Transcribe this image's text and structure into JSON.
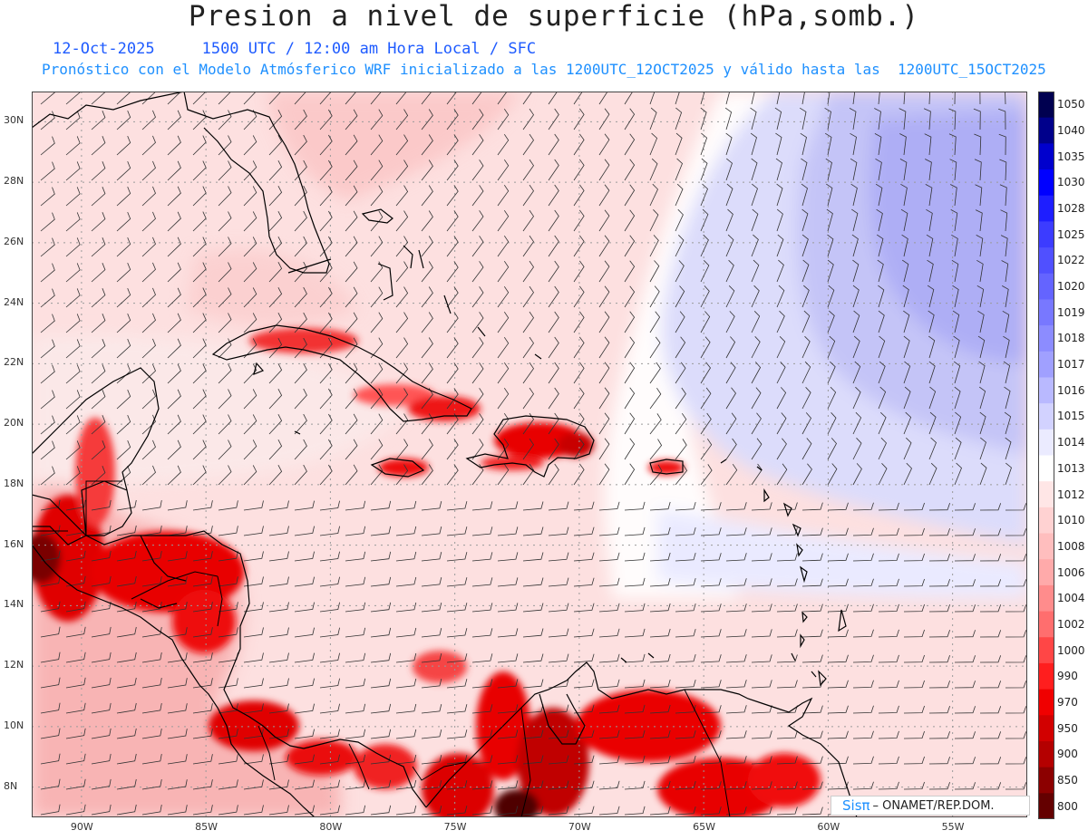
{
  "title": "Presion a nivel de superficie (hPa,somb.)",
  "subtitle": {
    "date": "12-Oct-2025",
    "time": "1500 UTC / 12:00 am Hora Local / SFC",
    "forecast": "Pronóstico con el Modelo Atmósferico WRF inicializado a las 1200UTC_12OCT2025 y válido hasta las  1200UTC_15OCT2025"
  },
  "map": {
    "lat_range": [
      7,
      31
    ],
    "lon_range": [
      -92,
      -52
    ],
    "lat_labels": [
      "30N",
      "28N",
      "26N",
      "24N",
      "22N",
      "20N",
      "18N",
      "16N",
      "14N",
      "12N",
      "10N",
      "8N"
    ],
    "lat_values": [
      30,
      28,
      26,
      24,
      22,
      20,
      18,
      16,
      14,
      12,
      10,
      8
    ],
    "lon_labels": [
      "90W",
      "85W",
      "80W",
      "75W",
      "70W",
      "65W",
      "60W",
      "55W"
    ],
    "lon_values": [
      -90,
      -85,
      -80,
      -75,
      -70,
      -65,
      -60,
      -55
    ],
    "colors": {
      "low": "#e8000b",
      "mid_low": "#fbd3d3",
      "neutral": "#ffffff",
      "high": "#a9a9f5"
    }
  },
  "colorbar": {
    "levels": [
      "1050",
      "1040",
      "1035",
      "1030",
      "1028",
      "1025",
      "1022",
      "1020",
      "1019",
      "1018",
      "1017",
      "1016",
      "1015",
      "1014",
      "1013",
      "1012",
      "1010",
      "1008",
      "1006",
      "1004",
      "1002",
      "1000",
      "990",
      "970",
      "950",
      "900",
      "850",
      "800"
    ],
    "colors": [
      "#000050",
      "#00008b",
      "#0000cd",
      "#0000ff",
      "#1e1eff",
      "#3c3cff",
      "#5050ff",
      "#6464ff",
      "#7878ff",
      "#8c8cff",
      "#a0a0ff",
      "#b9b9ff",
      "#d2d2ff",
      "#ebebff",
      "#ffffff",
      "#ffe6e6",
      "#ffd2d2",
      "#ffbebe",
      "#ffaaaa",
      "#ff8c8c",
      "#ff6e6e",
      "#ff4646",
      "#ff1e1e",
      "#f00000",
      "#d20000",
      "#b40000",
      "#8c0000",
      "#640000"
    ]
  },
  "credit": {
    "logo": "Sisπ",
    "text": "– ONAMET/REP.DOM."
  }
}
